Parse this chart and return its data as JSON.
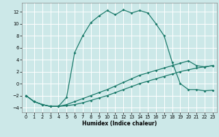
{
  "xlabel": "Humidex (Indice chaleur)",
  "background_color": "#cce8e8",
  "grid_color": "#ffffff",
  "line_color": "#1a7a6a",
  "xlim": [
    -0.5,
    23.5
  ],
  "ylim": [
    -4.8,
    13.5
  ],
  "xticks": [
    0,
    1,
    2,
    3,
    4,
    5,
    6,
    7,
    8,
    9,
    10,
    11,
    12,
    13,
    14,
    15,
    16,
    17,
    18,
    19,
    20,
    21,
    22,
    23
  ],
  "yticks": [
    -4,
    -2,
    0,
    2,
    4,
    6,
    8,
    10,
    12
  ],
  "series1_x": [
    0,
    1,
    2,
    3,
    4,
    5,
    6,
    7,
    8,
    9,
    10,
    11,
    12,
    13,
    14,
    15,
    16,
    17,
    18,
    19,
    20,
    21,
    22,
    23
  ],
  "series1_y": [
    -2,
    -3,
    -3.5,
    -3.8,
    -3.8,
    -3.7,
    -3.5,
    -3.2,
    -2.8,
    -2.4,
    -2.0,
    -1.5,
    -1.0,
    -0.5,
    0.0,
    0.4,
    0.8,
    1.2,
    1.6,
    2.0,
    2.3,
    2.6,
    2.8,
    3.0
  ],
  "series2_x": [
    0,
    1,
    2,
    3,
    4,
    5,
    6,
    7,
    8,
    9,
    10,
    11,
    12,
    13,
    14,
    15,
    16,
    17,
    18,
    19,
    20,
    21,
    22,
    23
  ],
  "series2_y": [
    -2,
    -3,
    -3.5,
    -3.8,
    -3.8,
    -3.5,
    -3.0,
    -2.5,
    -2.0,
    -1.5,
    -1.0,
    -0.4,
    0.2,
    0.8,
    1.4,
    1.8,
    2.2,
    2.6,
    3.0,
    3.4,
    3.8,
    3.0,
    2.8,
    3.0
  ],
  "series3_x": [
    0,
    1,
    2,
    3,
    4,
    5,
    6,
    7,
    8,
    9,
    10,
    11,
    12,
    13,
    14,
    15,
    16,
    17,
    18,
    19,
    20,
    21,
    22,
    23
  ],
  "series3_y": [
    -2,
    -3,
    -3.5,
    -3.8,
    -3.8,
    -2.3,
    5.2,
    8.0,
    10.2,
    11.3,
    12.2,
    11.5,
    12.3,
    11.8,
    12.2,
    11.8,
    10.0,
    8.0,
    3.6,
    0.0,
    -1.0,
    -1.0,
    -1.2,
    -1.1
  ],
  "markersize": 2.0,
  "linewidth": 0.9,
  "xlabel_fontsize": 5.5,
  "tick_fontsize": 4.8
}
